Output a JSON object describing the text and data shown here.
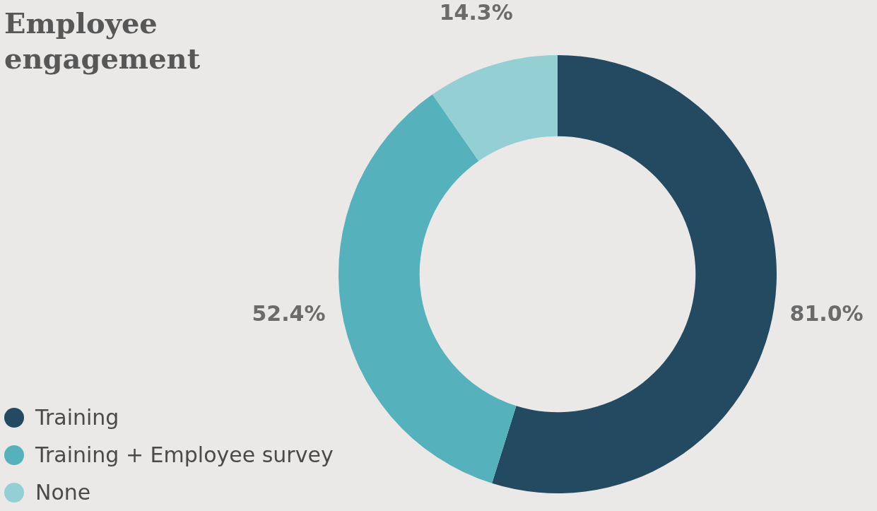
{
  "chart_data": {
    "type": "donut",
    "title": "Employee engagement",
    "categories": [
      "Training",
      "Training + Employee survey",
      "None"
    ],
    "values": [
      81.0,
      52.4,
      14.3
    ],
    "colors": [
      "#234a61",
      "#55b1bb",
      "#93cfd3"
    ],
    "value_labels": [
      "81.0%",
      "52.4%",
      "14.3%"
    ],
    "legend": "bottom left"
  }
}
